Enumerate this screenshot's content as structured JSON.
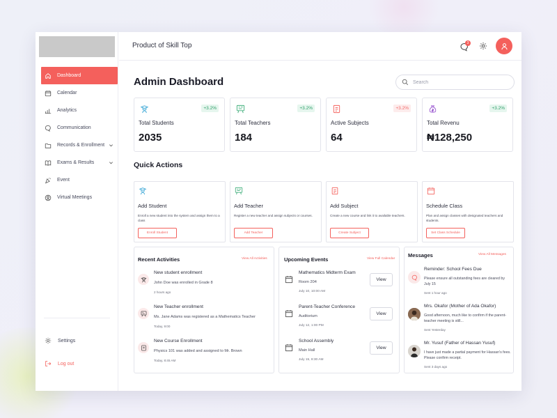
{
  "app": {
    "product_title": "Product of Skill Top",
    "notification_count": "3"
  },
  "colors": {
    "accent": "#f4605c",
    "positive": "#2e9e69",
    "warning": "#f26b6b",
    "student": "#3aa7d6",
    "teacher": "#3fae7a",
    "revenue": "#9b59d0"
  },
  "sidebar": {
    "items": [
      {
        "label": "Dashboard",
        "icon": "home-icon"
      },
      {
        "label": "Calendar",
        "icon": "calendar-icon"
      },
      {
        "label": "Analytics",
        "icon": "bar-chart-icon"
      },
      {
        "label": "Communication",
        "icon": "chat-icon"
      },
      {
        "label": "Records & Enrollment",
        "icon": "folder-icon"
      },
      {
        "label": "Exams & Results",
        "icon": "book-icon"
      },
      {
        "label": "Event",
        "icon": "party-icon"
      },
      {
        "label": "Virtual Meetings",
        "icon": "video-icon"
      }
    ],
    "settings_label": "Settings",
    "logout_label": "Log out"
  },
  "header": {
    "title": "Admin Dashboard",
    "search_placeholder": "Search"
  },
  "stats": [
    {
      "label": "Total Students",
      "value": "2035",
      "trend": "+3.2%",
      "icon": "graduate-icon"
    },
    {
      "label": "Total Teachers",
      "value": "184",
      "trend": "+3.2%",
      "icon": "board-icon"
    },
    {
      "label": "Active Subjects",
      "value": "64",
      "trend": "+3.2%",
      "icon": "book-icon"
    },
    {
      "label": "Total Revenu",
      "value": "₦128,250",
      "trend": "+3.2%",
      "icon": "money-bag-icon"
    }
  ],
  "quick_actions": {
    "title": "Quick Actions",
    "items": [
      {
        "title": "Add Student",
        "desc": "Enroll a new student into the system and assign them to a class",
        "button": "Enroll Student"
      },
      {
        "title": "Add Teacher",
        "desc": "Register a new teacher and assign subjects or courses.",
        "button": "Add Teacher"
      },
      {
        "title": "Add Subject",
        "desc": "Create a new course and link it to available teachers.",
        "button": "Create Subject"
      },
      {
        "title": "Schedule Class",
        "desc": "Plan and assign classes with designated teachers and students.",
        "button": "Set Class Schedule"
      }
    ]
  },
  "recent_activities": {
    "title": "Recent Activities",
    "link": "View All Activities",
    "items": [
      {
        "title": "New student enrollment",
        "detail": "John Doe was enrolled in Grade 8",
        "time": "2 hours ago"
      },
      {
        "title": "New Teacher enrollment",
        "detail": "Ms. Jane Adams was registered as a Mathematics Teacher",
        "time": "Today, 9:00"
      },
      {
        "title": "New Course Enrollment",
        "detail": "Physics 101 was added and assigned to Mr. Brown",
        "time": "Today, 8:45 AM"
      }
    ]
  },
  "upcoming_events": {
    "title": "Upcoming Events",
    "link": "View Full Calendar",
    "view_label": "View",
    "items": [
      {
        "title": "Mathematics Midterm Exam",
        "place": "Room 204",
        "date": "July 10, 10:00 AM"
      },
      {
        "title": "Parent-Teacher Conference",
        "place": "Auditorium",
        "date": "July 12, 1:00 PM"
      },
      {
        "title": "School Assembly",
        "place": "Main Hall",
        "date": "July 15, 8:30 AM"
      }
    ]
  },
  "messages": {
    "title": "Messages",
    "link": "View All Messages",
    "items": [
      {
        "title": "Reminder: School Fees Due",
        "body": "Please ensure all outstanding fees are cleared by July 15",
        "time": "Sent 1 hour ago"
      },
      {
        "title": "Mrs. Okafor (Mother of Ada Okafor)",
        "body": "Good afternoon, much like to confirm if the parent-teacher meeting is still...",
        "time": "Sent Yesterday"
      },
      {
        "title": "Mr. Yusuf (Father of Hassan Yusuf)",
        "body": "I have just made a partial payment for Hassan's fees. Please confirm receipt.",
        "time": "Sent 3 days ago"
      }
    ]
  }
}
